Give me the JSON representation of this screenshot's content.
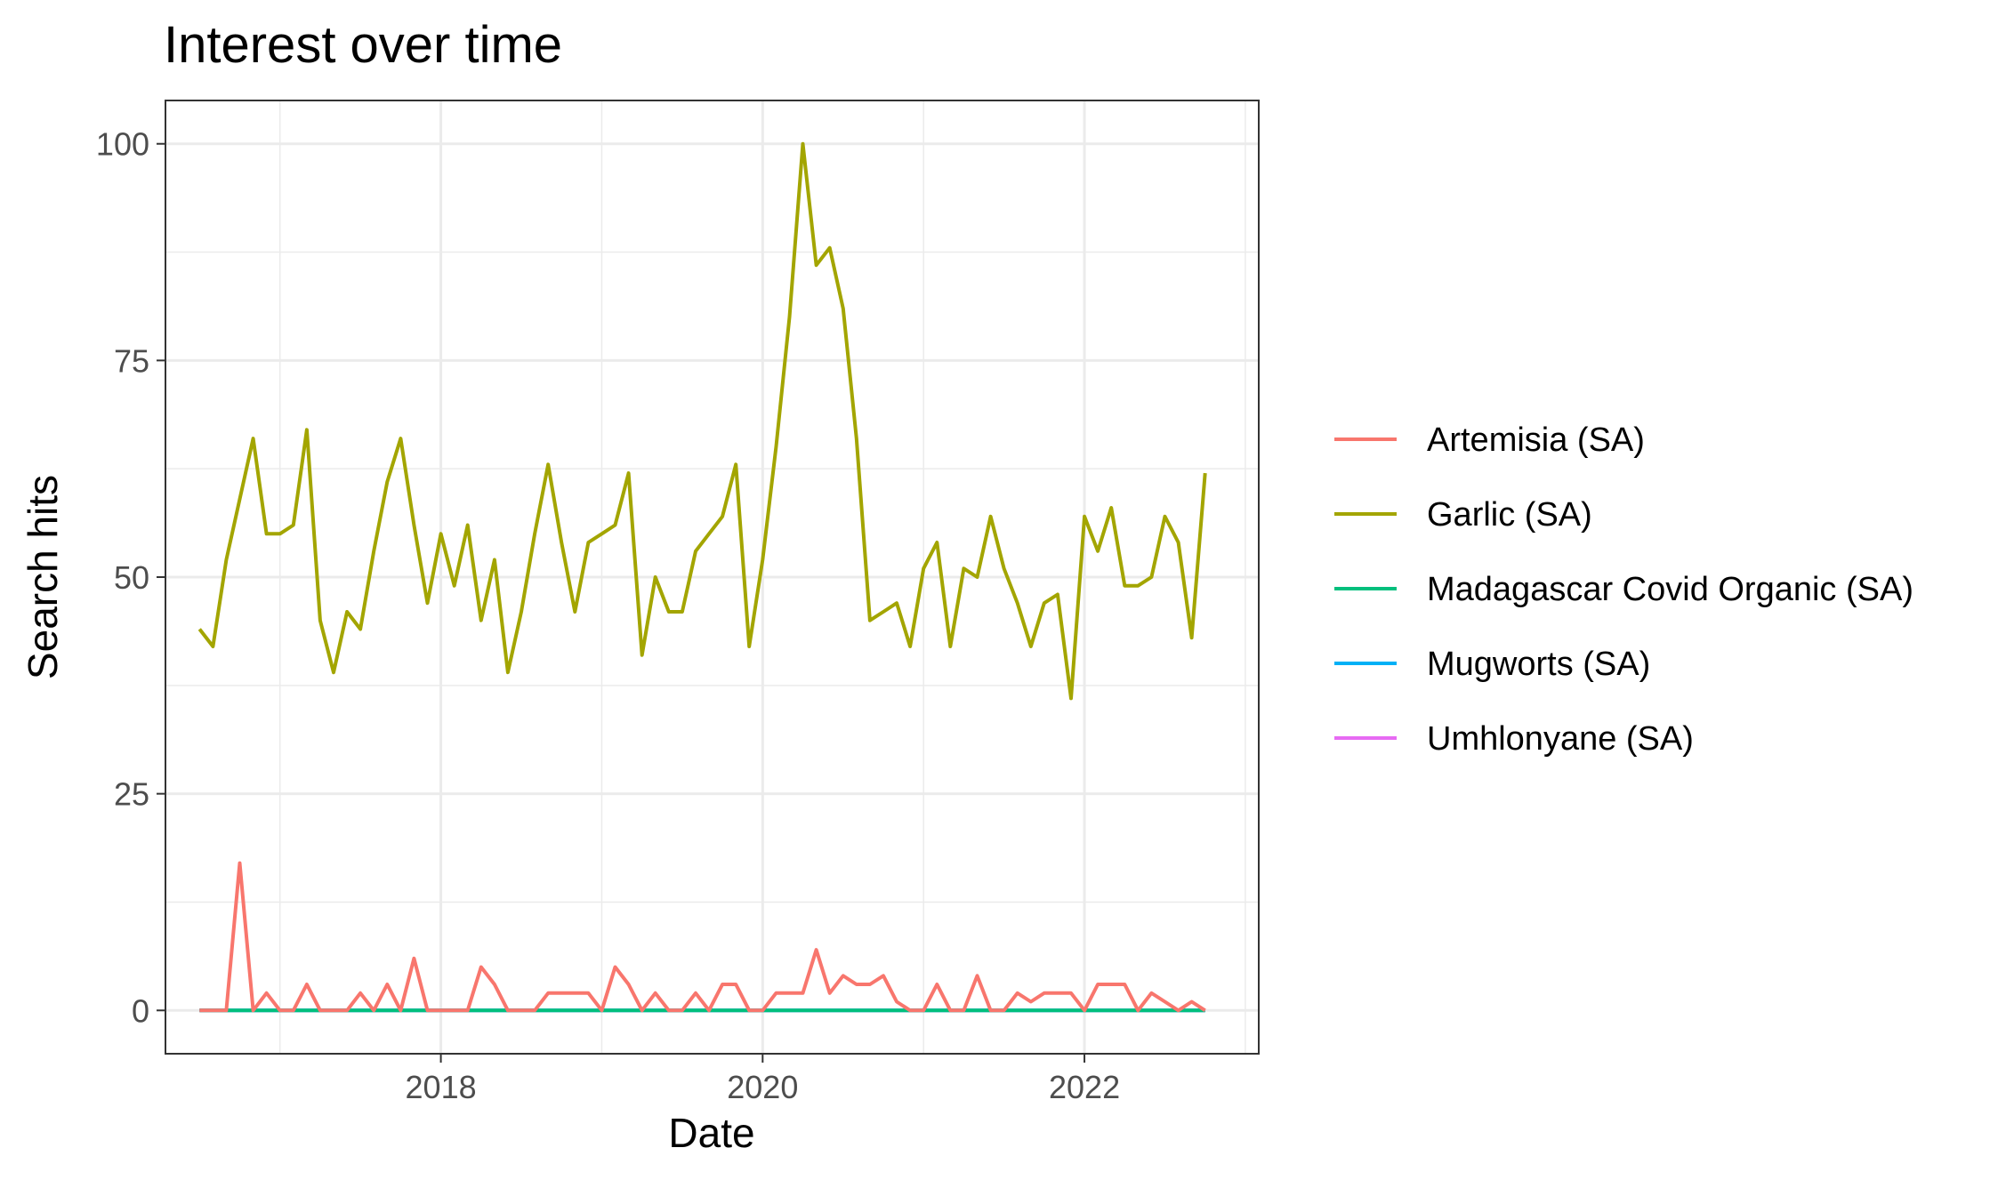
{
  "chart_data": {
    "type": "line",
    "title": "Interest over time",
    "xlabel": "Date",
    "ylabel": "Search hits",
    "xlim": [
      "2016-04-15",
      "2023-02-01"
    ],
    "ylim": [
      -5,
      105
    ],
    "x_ticks": [
      "2018",
      "2020",
      "2022"
    ],
    "y_ticks": [
      0,
      25,
      50,
      75,
      100
    ],
    "grid": true,
    "legend_position": "right",
    "x": [
      "2016-07-01",
      "2016-08-01",
      "2016-09-01",
      "2016-10-01",
      "2016-11-01",
      "2016-12-01",
      "2017-01-01",
      "2017-02-01",
      "2017-03-01",
      "2017-04-01",
      "2017-05-01",
      "2017-06-01",
      "2017-07-01",
      "2017-08-01",
      "2017-09-01",
      "2017-10-01",
      "2017-11-01",
      "2017-12-01",
      "2018-01-01",
      "2018-02-01",
      "2018-03-01",
      "2018-04-01",
      "2018-05-01",
      "2018-06-01",
      "2018-07-01",
      "2018-08-01",
      "2018-09-01",
      "2018-10-01",
      "2018-11-01",
      "2018-12-01",
      "2019-01-01",
      "2019-02-01",
      "2019-03-01",
      "2019-04-01",
      "2019-05-01",
      "2019-06-01",
      "2019-07-01",
      "2019-08-01",
      "2019-09-01",
      "2019-10-01",
      "2019-11-01",
      "2019-12-01",
      "2020-01-01",
      "2020-02-01",
      "2020-03-01",
      "2020-04-01",
      "2020-05-01",
      "2020-06-01",
      "2020-07-01",
      "2020-08-01",
      "2020-09-01",
      "2020-10-01",
      "2020-11-01",
      "2020-12-01",
      "2021-01-01",
      "2021-02-01",
      "2021-03-01",
      "2021-04-01",
      "2021-05-01",
      "2021-06-01",
      "2021-07-01",
      "2021-08-01",
      "2021-09-01",
      "2021-10-01",
      "2021-11-01",
      "2021-12-01",
      "2022-01-01",
      "2022-02-01",
      "2022-03-01",
      "2022-04-01",
      "2022-05-01",
      "2022-06-01",
      "2022-07-01",
      "2022-08-01",
      "2022-09-01",
      "2022-10-01"
    ],
    "series": [
      {
        "name": "Artemisia (SA)",
        "color": "#F8766D",
        "values": [
          0,
          0,
          0,
          17,
          0,
          2,
          0,
          0,
          3,
          0,
          0,
          0,
          2,
          0,
          3,
          0,
          6,
          0,
          0,
          0,
          0,
          5,
          3,
          0,
          0,
          0,
          2,
          2,
          2,
          2,
          0,
          5,
          3,
          0,
          2,
          0,
          0,
          2,
          0,
          3,
          3,
          0,
          0,
          2,
          2,
          2,
          7,
          2,
          4,
          3,
          3,
          4,
          1,
          0,
          0,
          3,
          0,
          0,
          4,
          0,
          0,
          2,
          1,
          2,
          2,
          2,
          0,
          3,
          3,
          3,
          0,
          2,
          1,
          0,
          1,
          0
        ]
      },
      {
        "name": "Garlic (SA)",
        "color": "#A3A500",
        "values": [
          44,
          42,
          52,
          59,
          66,
          55,
          55,
          56,
          67,
          45,
          39,
          46,
          44,
          53,
          61,
          66,
          56,
          47,
          55,
          49,
          56,
          45,
          52,
          39,
          46,
          55,
          63,
          54,
          46,
          54,
          55,
          56,
          62,
          41,
          50,
          46,
          46,
          53,
          55,
          57,
          63,
          42,
          52,
          65,
          80,
          100,
          86,
          88,
          81,
          66,
          45,
          46,
          47,
          42,
          51,
          54,
          42,
          51,
          50,
          57,
          51,
          47,
          42,
          47,
          48,
          36,
          57,
          53,
          58,
          49,
          49,
          50,
          57,
          54,
          43,
          62
        ]
      },
      {
        "name": "Madagascar Covid Organic (SA)",
        "color": "#00BF7D",
        "values": [
          0,
          0,
          0,
          0,
          0,
          0,
          0,
          0,
          0,
          0,
          0,
          0,
          0,
          0,
          0,
          0,
          0,
          0,
          0,
          0,
          0,
          0,
          0,
          0,
          0,
          0,
          0,
          0,
          0,
          0,
          0,
          0,
          0,
          0,
          0,
          0,
          0,
          0,
          0,
          0,
          0,
          0,
          0,
          0,
          0,
          0,
          0,
          0,
          0,
          0,
          0,
          0,
          0,
          0,
          0,
          0,
          0,
          0,
          0,
          0,
          0,
          0,
          0,
          0,
          0,
          0,
          0,
          0,
          0,
          0,
          0,
          0,
          0,
          0,
          0,
          0
        ]
      },
      {
        "name": "Mugworts (SA)",
        "color": "#00B0F6",
        "values": [
          0,
          0,
          0,
          0,
          0,
          0,
          0,
          0,
          0,
          0,
          0,
          0,
          0,
          0,
          0,
          0,
          0,
          0,
          0,
          0,
          0,
          0,
          0,
          0,
          0,
          0,
          0,
          0,
          0,
          0,
          0,
          0,
          0,
          0,
          0,
          0,
          0,
          0,
          0,
          0,
          0,
          0,
          0,
          0,
          0,
          0,
          0,
          0,
          0,
          0,
          0,
          0,
          0,
          0,
          0,
          0,
          0,
          0,
          0,
          0,
          0,
          0,
          0,
          0,
          0,
          0,
          0,
          0,
          0,
          0,
          0,
          0,
          0,
          0,
          0,
          0
        ]
      },
      {
        "name": "Umhlonyane (SA)",
        "color": "#E76BF3",
        "values": [
          0,
          0,
          0,
          0,
          0,
          0,
          0,
          0,
          0,
          0,
          0,
          0,
          0,
          0,
          0,
          0,
          0,
          0,
          0,
          0,
          0,
          0,
          0,
          0,
          0,
          0,
          0,
          0,
          0,
          0,
          0,
          0,
          0,
          0,
          0,
          0,
          0,
          0,
          0,
          0,
          0,
          0,
          0,
          0,
          0,
          0,
          0,
          0,
          0,
          0,
          0,
          0,
          0,
          0,
          0,
          0,
          0,
          0,
          0,
          0,
          0,
          0,
          0,
          0,
          0,
          0,
          0,
          0,
          0,
          0,
          0,
          0,
          0,
          0,
          0,
          0
        ]
      }
    ]
  }
}
